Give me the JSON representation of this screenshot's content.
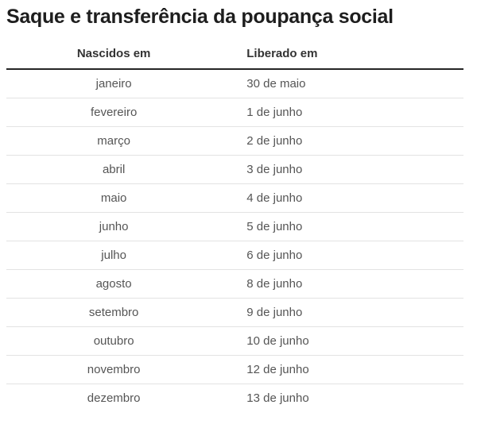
{
  "chart_data": {
    "type": "table",
    "title": "Saque e transferência da poupança social",
    "columns": [
      "Nascidos em",
      "Liberado em"
    ],
    "rows": [
      [
        "janeiro",
        "30 de maio"
      ],
      [
        "fevereiro",
        "1 de junho"
      ],
      [
        "março",
        "2 de junho"
      ],
      [
        "abril",
        "3 de junho"
      ],
      [
        "maio",
        "4 de junho"
      ],
      [
        "junho",
        "5 de junho"
      ],
      [
        "julho",
        "6 de junho"
      ],
      [
        "agosto",
        "8 de junho"
      ],
      [
        "setembro",
        "9 de junho"
      ],
      [
        "outubro",
        "10 de junho"
      ],
      [
        "novembro",
        "12 de junho"
      ],
      [
        "dezembro",
        "13 de junho"
      ]
    ]
  },
  "colors": {
    "background": "#ffffff",
    "title_text": "#1e1e1e",
    "header_text": "#333333",
    "header_rule": "#262626",
    "cell_text": "#555555",
    "row_divider": "#e3e3e3"
  }
}
